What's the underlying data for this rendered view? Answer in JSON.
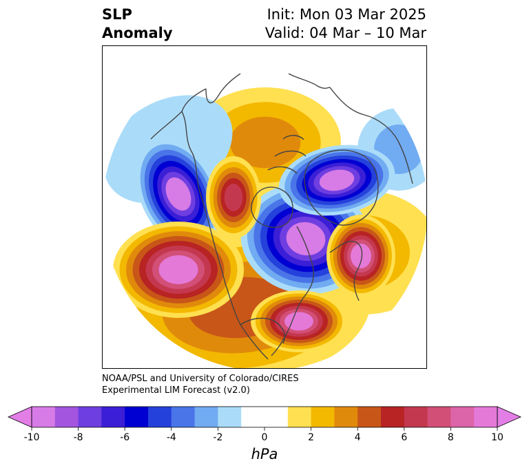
{
  "title": {
    "left_line1": "SLP",
    "left_line2": "Anomaly",
    "right_line1": "Init: Mon 03 Mar 2025",
    "right_line2": "Valid: 04 Mar – 10 Mar"
  },
  "credit": {
    "line1": "NOAA/PSL and University of Colorado/CIRES",
    "line2": "Experimental LIM Forecast (v2.0)"
  },
  "colorbar": {
    "unit": "hPa",
    "min": -10,
    "max": 10,
    "tick_labels": [
      "-10",
      "-8",
      "-6",
      "-4",
      "-2",
      "0",
      "2",
      "4",
      "6",
      "8",
      "10"
    ],
    "tick_values": [
      -10,
      -8,
      -6,
      -4,
      -2,
      0,
      2,
      4,
      6,
      8,
      10
    ],
    "under_color": "#e27ee6",
    "over_color": "#e27ee6",
    "colors": [
      "#d77be6",
      "#a355e0",
      "#6e3ee0",
      "#3b1fd6",
      "#0000d2",
      "#2541db",
      "#4a75e8",
      "#71abf2",
      "#aadcf9",
      "#ffffff",
      "#ffffff",
      "#ffe050",
      "#f3b800",
      "#e08a0c",
      "#c85618",
      "#b82323",
      "#c4384f",
      "#d24f77",
      "#dc64a8",
      "#e479d8"
    ]
  },
  "map_colors": {
    "neg_weak": "#aadcf9",
    "neg_mod": "#4a75e8",
    "neg_strong": "#0000d2",
    "neg_core": "#d77be6",
    "pos_weak": "#ffe050",
    "pos_mod": "#e08a0c",
    "pos_strong": "#b82323",
    "pos_core": "#e479d8",
    "coast": "#444444"
  }
}
